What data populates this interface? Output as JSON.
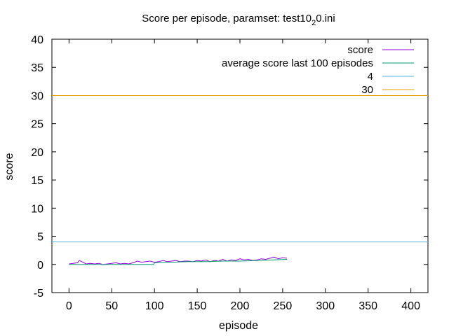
{
  "chart_data": {
    "type": "line",
    "title_main": "Score per episode, paramset: test10",
    "title_subscript": "2",
    "title_tail": "0.ini",
    "xlabel": "episode",
    "ylabel": "score",
    "xlim": [
      -20,
      420
    ],
    "ylim": [
      -5,
      40
    ],
    "xticks": [
      0,
      50,
      100,
      150,
      200,
      250,
      300,
      350,
      400
    ],
    "yticks": [
      -5,
      0,
      5,
      10,
      15,
      20,
      25,
      30,
      35,
      40
    ],
    "grid": false,
    "legend_position": "top-right",
    "series": [
      {
        "name": "score",
        "color": "#9400d3",
        "x": [
          0,
          5,
          10,
          12,
          15,
          20,
          25,
          30,
          35,
          40,
          45,
          50,
          55,
          60,
          65,
          70,
          75,
          80,
          85,
          90,
          95,
          100,
          105,
          110,
          115,
          120,
          125,
          130,
          135,
          140,
          145,
          150,
          155,
          160,
          165,
          170,
          175,
          180,
          185,
          190,
          195,
          200,
          205,
          210,
          215,
          220,
          225,
          230,
          235,
          240,
          245,
          250,
          255
        ],
        "y": [
          0.1,
          0.2,
          0.3,
          0.7,
          0.5,
          0.1,
          0.2,
          0.1,
          0.2,
          0.0,
          0.1,
          0.2,
          0.3,
          0.1,
          0.2,
          0.1,
          0.3,
          0.6,
          0.4,
          0.5,
          0.6,
          0.4,
          0.5,
          0.7,
          0.5,
          0.6,
          0.7,
          0.5,
          0.6,
          0.6,
          0.5,
          0.7,
          0.6,
          0.8,
          0.5,
          0.7,
          0.6,
          0.9,
          0.6,
          0.8,
          0.7,
          1.0,
          0.8,
          0.9,
          0.7,
          0.8,
          1.0,
          0.9,
          1.1,
          1.3,
          1.0,
          1.2,
          1.1
        ]
      },
      {
        "name": "average score last 100 episodes",
        "color": "#009e73",
        "x": [
          0,
          99,
          100,
          120,
          140,
          160,
          180,
          200,
          220,
          240,
          255
        ],
        "y": [
          0.0,
          0.0,
          0.3,
          0.4,
          0.5,
          0.5,
          0.6,
          0.6,
          0.7,
          0.8,
          0.9
        ]
      },
      {
        "name": "4",
        "color": "#56b4e9",
        "constant": 4
      },
      {
        "name": "30",
        "color": "#e69f00",
        "constant": 30
      }
    ]
  }
}
